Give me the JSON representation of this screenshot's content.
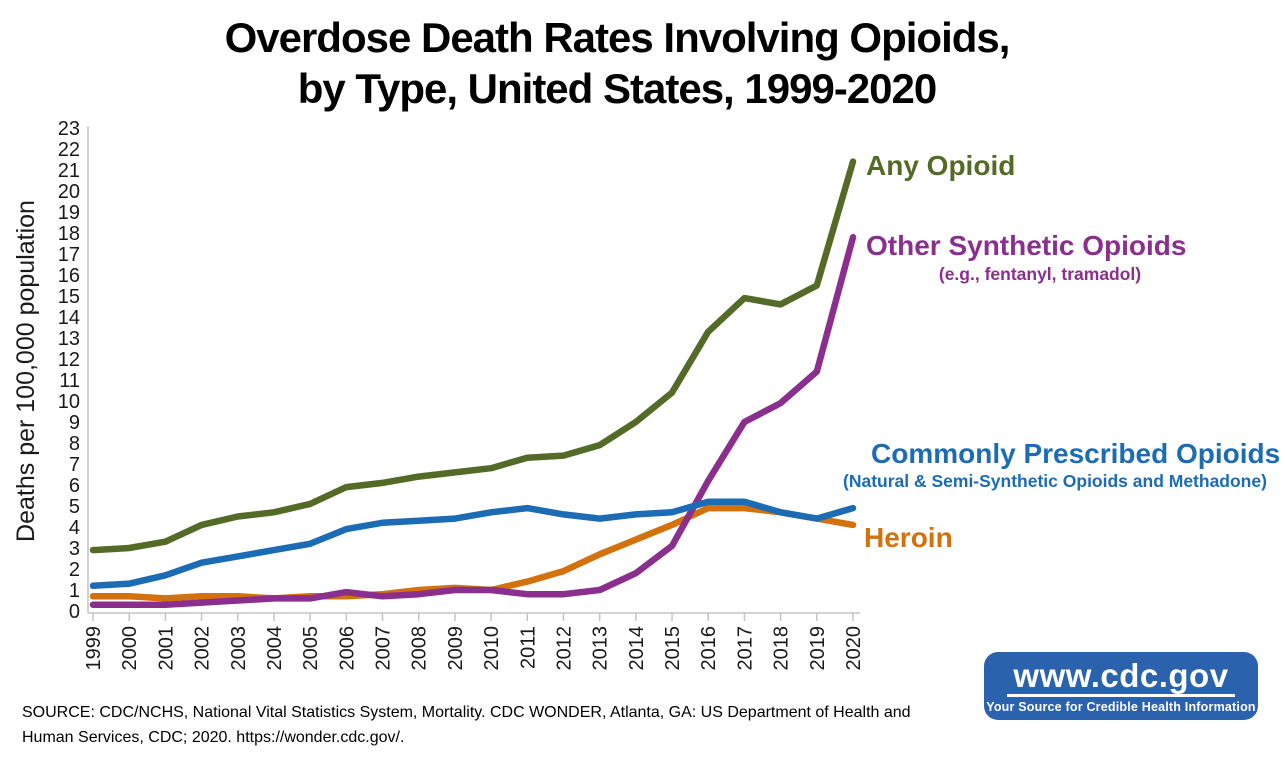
{
  "title": {
    "line1": "Overdose Death Rates Involving Opioids,",
    "line2": "by Type, United States, 1999-2020"
  },
  "chart_data": {
    "type": "line",
    "title": "Overdose Death Rates Involving Opioids, by Type, United States, 1999-2020",
    "xlabel": "",
    "ylabel": "Deaths per 100,000 population",
    "ylim": [
      0,
      23
    ],
    "yticks": [
      0,
      1,
      2,
      3,
      4,
      5,
      6,
      7,
      8,
      9,
      10,
      11,
      12,
      13,
      14,
      15,
      16,
      17,
      18,
      19,
      20,
      21,
      22,
      23
    ],
    "x": [
      1999,
      2000,
      2001,
      2002,
      2003,
      2004,
      2005,
      2006,
      2007,
      2008,
      2009,
      2010,
      2011,
      2012,
      2013,
      2014,
      2015,
      2016,
      2017,
      2018,
      2019,
      2020
    ],
    "grid": false,
    "legend_position": "right-annotations",
    "axis_color": "#c4c4c4",
    "tick_label_color": "#1a1a1a",
    "series": [
      {
        "name": "Any Opioid",
        "color": "#546a27",
        "z": 3,
        "values": [
          2.9,
          3.0,
          3.3,
          4.1,
          4.5,
          4.7,
          5.1,
          5.9,
          6.1,
          6.4,
          6.6,
          6.8,
          7.3,
          7.4,
          7.9,
          9.0,
          10.4,
          13.3,
          14.9,
          14.6,
          15.5,
          21.4
        ]
      },
      {
        "name": "Other Synthetic Opioids",
        "subtitle": "(e.g., fentanyl, tramadol)",
        "color": "#8b2f8f",
        "z": 1,
        "values": [
          0.3,
          0.3,
          0.3,
          0.4,
          0.5,
          0.6,
          0.6,
          0.9,
          0.7,
          0.8,
          1.0,
          1.0,
          0.8,
          0.8,
          1.0,
          1.8,
          3.1,
          6.2,
          9.0,
          9.9,
          11.4,
          17.8
        ]
      },
      {
        "name": "Commonly Prescribed Opioids",
        "subtitle": "(Natural & Semi-Synthetic Opioids and Methadone)",
        "color": "#1b6cb5",
        "z": 2,
        "values": [
          1.2,
          1.3,
          1.7,
          2.3,
          2.6,
          2.9,
          3.2,
          3.9,
          4.2,
          4.3,
          4.4,
          4.7,
          4.9,
          4.6,
          4.4,
          4.6,
          4.7,
          5.2,
          5.2,
          4.7,
          4.4,
          4.9
        ]
      },
      {
        "name": "Heroin",
        "color": "#d3710c",
        "z": 0,
        "values": [
          0.7,
          0.7,
          0.6,
          0.7,
          0.7,
          0.6,
          0.7,
          0.7,
          0.8,
          1.0,
          1.1,
          1.0,
          1.4,
          1.9,
          2.7,
          3.4,
          4.1,
          4.9,
          4.9,
          4.7,
          4.4,
          4.1
        ]
      }
    ]
  },
  "footer": {
    "source_text": "SOURCE: CDC/NCHS, National Vital Statistics System, Mortality. CDC WONDER, Atlanta, GA: US Department of Health and Human Services, CDC; 2020. https://wonder.cdc.gov/."
  },
  "logo": {
    "url_text": "www.cdc.gov",
    "tagline": "Your Source for Credible Health Information",
    "bg_color": "#2a62ae"
  }
}
